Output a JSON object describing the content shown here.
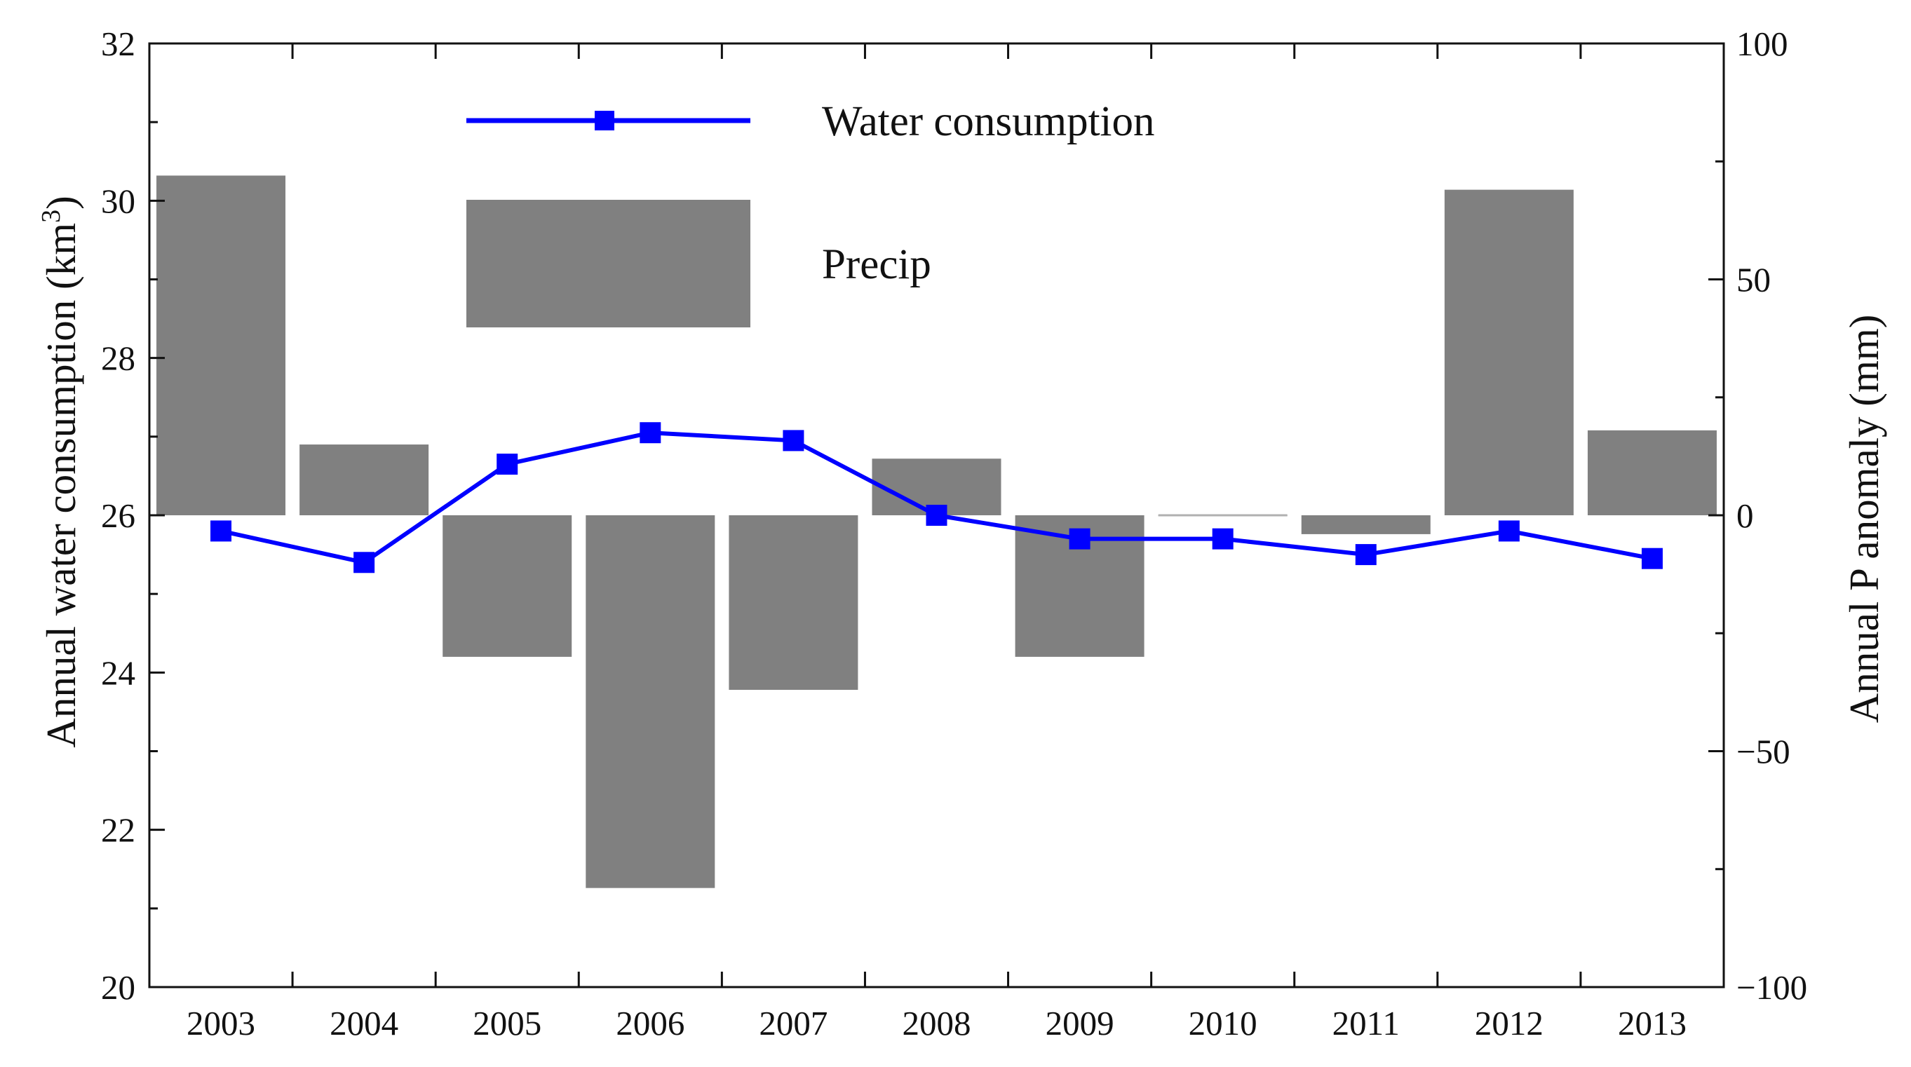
{
  "chart_data": {
    "type": "bar+line",
    "categories": [
      "2003",
      "2004",
      "2005",
      "2006",
      "2007",
      "2008",
      "2009",
      "2010",
      "2011",
      "2012",
      "2013"
    ],
    "series": [
      {
        "name": "Water consumption",
        "type": "line",
        "axis": "left",
        "color": "#0000ff",
        "values": [
          25.8,
          25.4,
          26.65,
          27.05,
          26.95,
          26.0,
          25.7,
          25.7,
          25.5,
          25.8,
          25.45
        ]
      },
      {
        "name": "Precip",
        "type": "bar",
        "axis": "right",
        "color": "#808080",
        "values": [
          72,
          15,
          -30,
          -79,
          -37,
          12,
          -30,
          0,
          -4,
          69,
          18
        ]
      }
    ],
    "ylabel_main": "Annual water consumption (km",
    "ylabel_sup": "3",
    "ylabel_end": ")",
    "y2label": "Annual P anomaly (mm)",
    "ylim": [
      20,
      32
    ],
    "y2lim": [
      -100,
      100
    ],
    "yticks": [
      "20",
      "22",
      "24",
      "26",
      "28",
      "30",
      "32"
    ],
    "y2ticks": [
      "−100",
      "−50",
      "0",
      "50",
      "100"
    ],
    "legend": {
      "position": "top-center",
      "entries": [
        "Water consumption",
        "Precip"
      ]
    }
  }
}
